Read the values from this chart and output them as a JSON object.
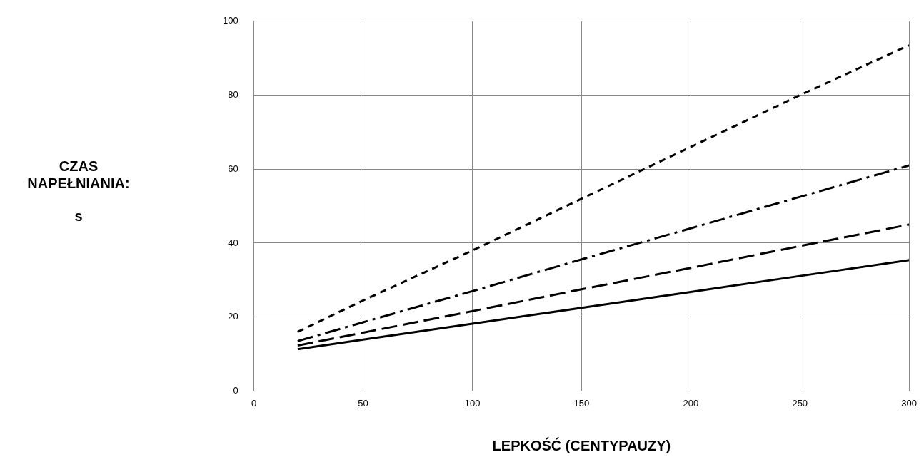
{
  "chart_data": {
    "type": "line",
    "xlabel": "LEPKOŚĆ (CENTYPAUZY)",
    "ylabel": "CZAS NAPEŁNIANIA: s",
    "x": [
      20,
      50,
      100,
      150,
      200,
      250,
      300
    ],
    "series": [
      {
        "color": "#000000",
        "line_style": "solid",
        "values": [
          11.3,
          13.9,
          18.2,
          22.5,
          26.8,
          31.1,
          35.4
        ]
      },
      {
        "color": "#000000",
        "line_style": "dashed",
        "values": [
          12.3,
          15.8,
          21.6,
          27.5,
          33.3,
          39.2,
          45
        ]
      },
      {
        "color": "#000000",
        "line_style": "dashdot",
        "values": [
          13.5,
          18.6,
          27,
          35.6,
          44,
          52.5,
          61
        ]
      },
      {
        "color": "#000000",
        "line_style": "dotted",
        "values": [
          16,
          24.5,
          38,
          52,
          66,
          80,
          93.5
        ]
      }
    ],
    "xlim": [
      0,
      300
    ],
    "xticks": [
      0,
      50,
      100,
      150,
      200,
      250,
      300
    ],
    "ylim": [
      0,
      100
    ],
    "yticks": [
      0,
      20,
      40,
      60,
      80,
      100
    ],
    "grid": true,
    "legend": false,
    "marker": "none"
  }
}
